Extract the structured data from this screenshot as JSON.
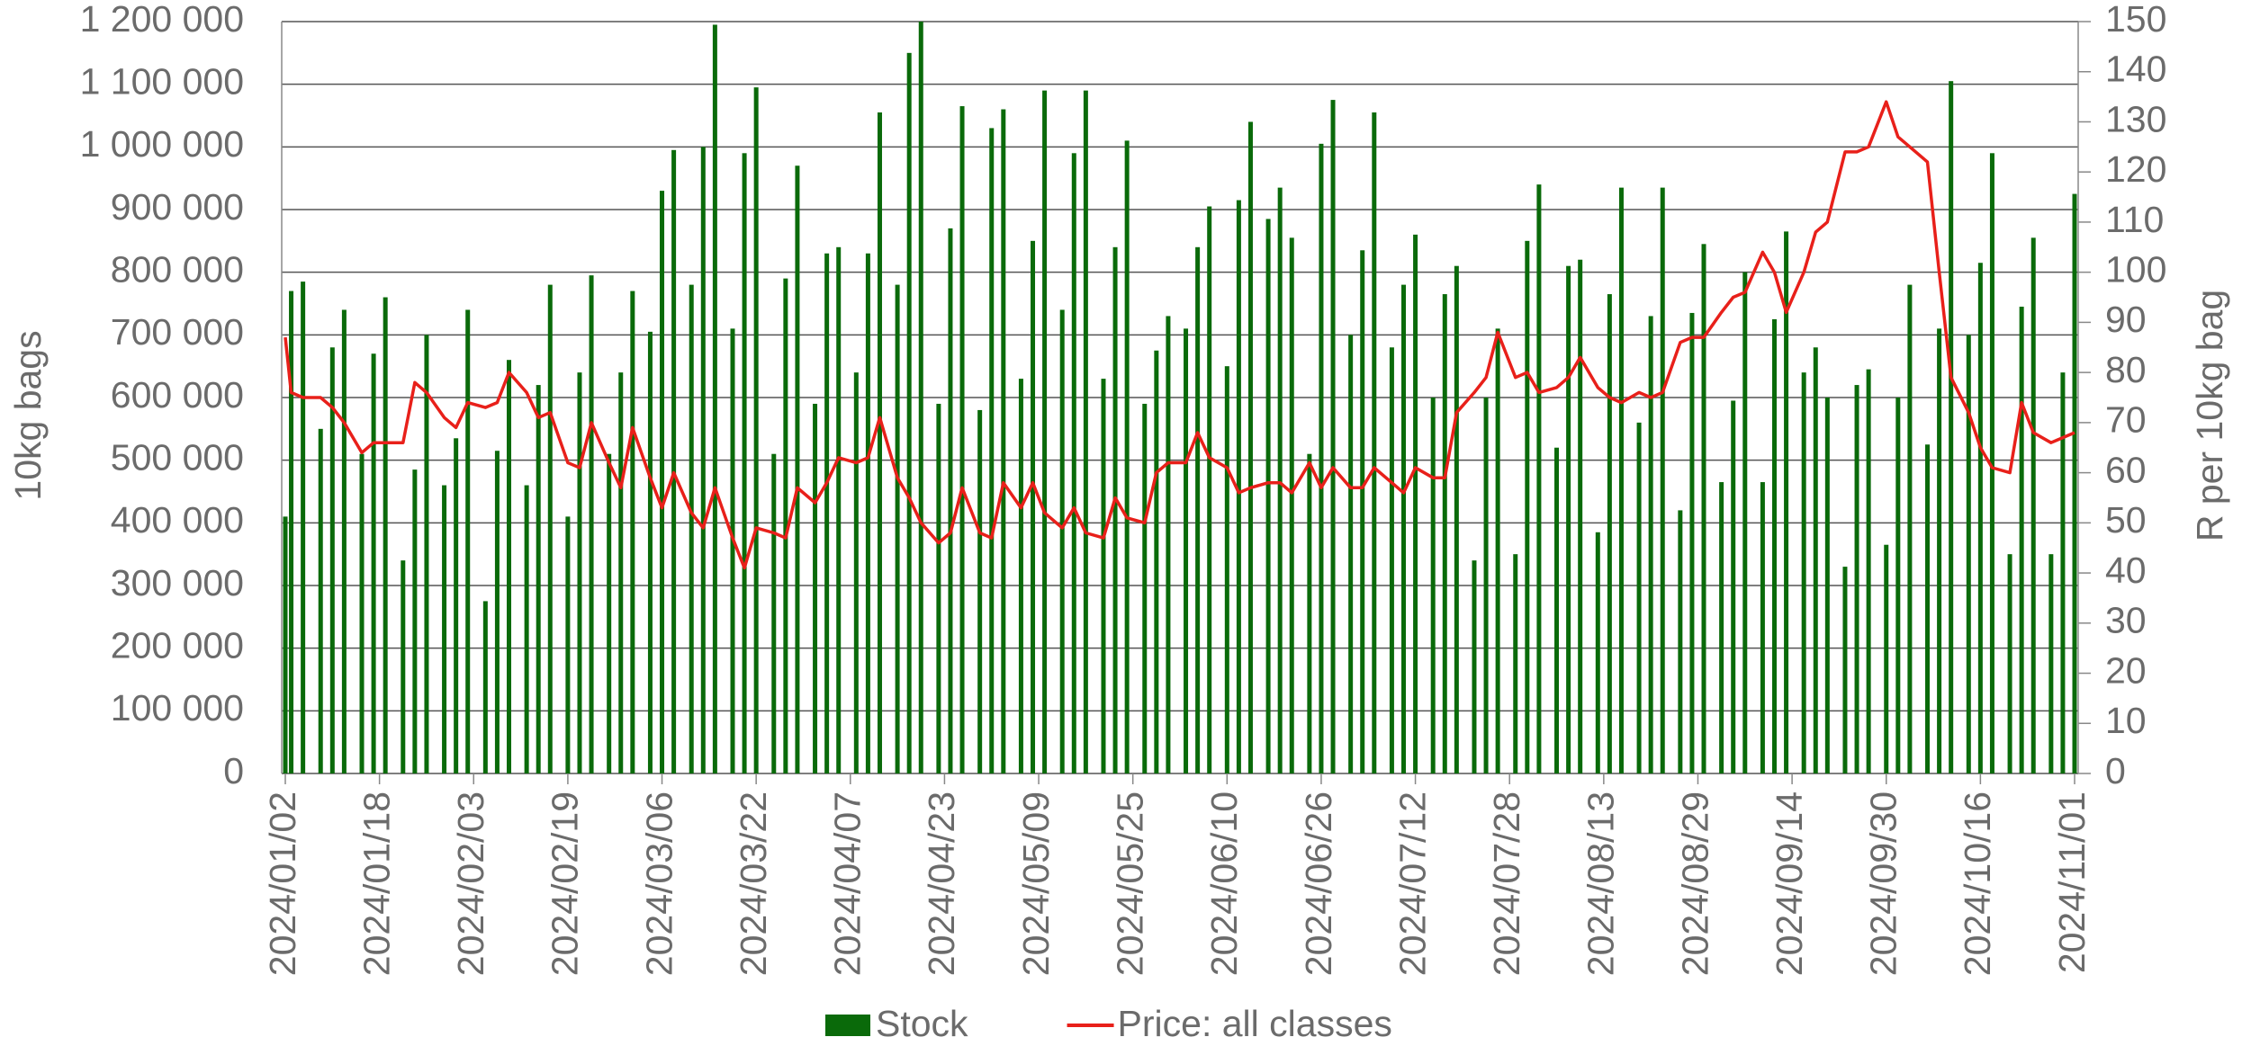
{
  "chart_data": {
    "type": "bar-line",
    "y_label": "10kg bags",
    "y2_label": "R per 10kg bag",
    "legend": "bottom",
    "grid": true,
    "xlim": [
      "2024/01/02",
      "2024/11/01"
    ],
    "xticks": [
      "2024/01/02",
      "2024/01/18",
      "2024/02/03",
      "2024/02/19",
      "2024/03/06",
      "2024/03/22",
      "2024/04/07",
      "2024/04/23",
      "2024/05/09",
      "2024/05/25",
      "2024/06/10",
      "2024/06/26",
      "2024/07/12",
      "2024/07/28",
      "2024/08/13",
      "2024/08/29",
      "2024/09/14",
      "2024/09/30",
      "2024/10/16",
      "2024/11/01"
    ],
    "ylim": [
      0,
      1200000
    ],
    "yticks": [
      0,
      {
        "value": 100000,
        "label": "100 000"
      },
      {
        "value": 200000,
        "label": "200 000"
      },
      {
        "value": 300000,
        "label": "300 000"
      },
      {
        "value": 400000,
        "label": "400 000"
      },
      {
        "value": 500000,
        "label": "500 000"
      },
      {
        "value": 600000,
        "label": "600 000"
      },
      {
        "value": 700000,
        "label": "700 000"
      },
      {
        "value": 800000,
        "label": "800 000"
      },
      {
        "value": 900000,
        "label": "900 000"
      },
      {
        "value": 1000000,
        "label": "1 000 000"
      },
      {
        "value": 1100000,
        "label": "1 100 000"
      },
      {
        "value": 1200000,
        "label": "1 200 000"
      }
    ],
    "y2lim": [
      0,
      150
    ],
    "y2ticks": [
      0,
      10,
      20,
      30,
      40,
      50,
      60,
      70,
      80,
      90,
      100,
      110,
      120,
      130,
      140,
      150
    ],
    "x": [
      "2024/01/02",
      "2024/01/03",
      "2024/01/05",
      "2024/01/08",
      "2024/01/10",
      "2024/01/12",
      "2024/01/15",
      "2024/01/17",
      "2024/01/19",
      "2024/01/22",
      "2024/01/24",
      "2024/01/26",
      "2024/01/29",
      "2024/01/31",
      "2024/02/02",
      "2024/02/05",
      "2024/02/07",
      "2024/02/09",
      "2024/02/12",
      "2024/02/14",
      "2024/02/16",
      "2024/02/19",
      "2024/02/21",
      "2024/02/23",
      "2024/02/26",
      "2024/02/28",
      "2024/03/01",
      "2024/03/04",
      "2024/03/06",
      "2024/03/08",
      "2024/03/11",
      "2024/03/13",
      "2024/03/15",
      "2024/03/18",
      "2024/03/20",
      "2024/03/22",
      "2024/03/25",
      "2024/03/27",
      "2024/03/29",
      "2024/04/01",
      "2024/04/03",
      "2024/04/05",
      "2024/04/08",
      "2024/04/10",
      "2024/04/12",
      "2024/04/15",
      "2024/04/17",
      "2024/04/19",
      "2024/04/22",
      "2024/04/24",
      "2024/04/26",
      "2024/04/29",
      "2024/05/01",
      "2024/05/03",
      "2024/05/06",
      "2024/05/08",
      "2024/05/10",
      "2024/05/13",
      "2024/05/15",
      "2024/05/17",
      "2024/05/20",
      "2024/05/22",
      "2024/05/24",
      "2024/05/27",
      "2024/05/29",
      "2024/05/31",
      "2024/06/03",
      "2024/06/05",
      "2024/06/07",
      "2024/06/10",
      "2024/06/12",
      "2024/06/14",
      "2024/06/17",
      "2024/06/19",
      "2024/06/21",
      "2024/06/24",
      "2024/06/26",
      "2024/06/28",
      "2024/07/01",
      "2024/07/03",
      "2024/07/05",
      "2024/07/08",
      "2024/07/10",
      "2024/07/12",
      "2024/07/15",
      "2024/07/17",
      "2024/07/19",
      "2024/07/22",
      "2024/07/24",
      "2024/07/26",
      "2024/07/29",
      "2024/07/31",
      "2024/08/02",
      "2024/08/05",
      "2024/08/07",
      "2024/08/09",
      "2024/08/12",
      "2024/08/14",
      "2024/08/16",
      "2024/08/19",
      "2024/08/21",
      "2024/08/23",
      "2024/08/26",
      "2024/08/28",
      "2024/08/30",
      "2024/09/02",
      "2024/09/04",
      "2024/09/06",
      "2024/09/09",
      "2024/09/11",
      "2024/09/13",
      "2024/09/16",
      "2024/09/18",
      "2024/09/20",
      "2024/09/23",
      "2024/09/25",
      "2024/09/27",
      "2024/09/30",
      "2024/10/02",
      "2024/10/04",
      "2024/10/07",
      "2024/10/09",
      "2024/10/11",
      "2024/10/14",
      "2024/10/16",
      "2024/10/18",
      "2024/10/21",
      "2024/10/23",
      "2024/10/25",
      "2024/10/28",
      "2024/10/30",
      "2024/11/01"
    ],
    "series": [
      {
        "name": "Stock",
        "type": "bar",
        "color": "#0a6a0a",
        "values": [
          410000,
          770000,
          785000,
          550000,
          680000,
          740000,
          510000,
          670000,
          760000,
          340000,
          485000,
          700000,
          460000,
          535000,
          740000,
          275000,
          515000,
          660000,
          460000,
          620000,
          780000,
          410000,
          640000,
          795000,
          510000,
          640000,
          770000,
          705000,
          930000,
          995000,
          780000,
          1000000,
          1195000,
          710000,
          990000,
          1095000,
          510000,
          790000,
          970000,
          590000,
          830000,
          840000,
          640000,
          830000,
          1055000,
          780000,
          1150000,
          1200000,
          590000,
          870000,
          1065000,
          580000,
          1030000,
          1060000,
          630000,
          850000,
          1090000,
          740000,
          990000,
          1090000,
          630000,
          840000,
          1010000,
          590000,
          675000,
          730000,
          710000,
          840000,
          905000,
          650000,
          915000,
          1040000,
          885000,
          935000,
          855000,
          510000,
          1005000,
          1075000,
          700000,
          835000,
          1055000,
          680000,
          780000,
          860000,
          600000,
          765000,
          810000,
          340000,
          600000,
          710000,
          350000,
          850000,
          940000,
          520000,
          810000,
          820000,
          385000,
          765000,
          935000,
          560000,
          730000,
          935000,
          420000,
          735000,
          845000,
          465000,
          595000,
          800000,
          465000,
          725000,
          865000,
          640000,
          680000,
          600000,
          330000,
          620000,
          645000,
          365000,
          600000,
          780000,
          525000,
          710000,
          1105000,
          700000,
          815000,
          990000,
          350000,
          745000,
          855000,
          350000,
          640000,
          925000
        ]
      },
      {
        "name": "Price: all classes",
        "type": "line",
        "axis": "y2",
        "color": "#e8201a",
        "values": [
          87,
          76,
          75,
          75,
          73,
          70,
          64,
          66,
          66,
          66,
          78,
          76,
          71,
          69,
          74,
          73,
          74,
          80,
          76,
          71,
          72,
          62,
          61,
          70,
          62,
          57,
          69,
          59,
          53,
          60,
          52,
          49,
          57,
          47,
          41,
          49,
          48,
          47,
          57,
          54,
          58,
          63,
          62,
          63,
          71,
          59,
          55,
          50,
          46,
          48,
          57,
          48,
          47,
          58,
          53,
          58,
          52,
          49,
          53,
          48,
          47,
          55,
          51,
          50,
          60,
          62,
          62,
          68,
          63,
          61,
          56,
          57,
          58,
          58,
          56,
          62,
          57,
          61,
          57,
          57,
          61,
          58,
          56,
          61,
          59,
          59,
          72,
          76,
          79,
          88,
          79,
          80,
          76,
          77,
          79,
          83,
          77,
          75,
          74,
          76,
          75,
          76,
          86,
          87,
          87,
          92,
          95,
          96,
          104,
          100,
          92,
          100,
          108,
          110,
          124,
          124,
          125,
          134,
          127,
          125,
          122,
          100,
          79,
          72,
          65,
          61,
          60,
          74,
          68,
          66,
          67,
          68
        ]
      }
    ]
  }
}
